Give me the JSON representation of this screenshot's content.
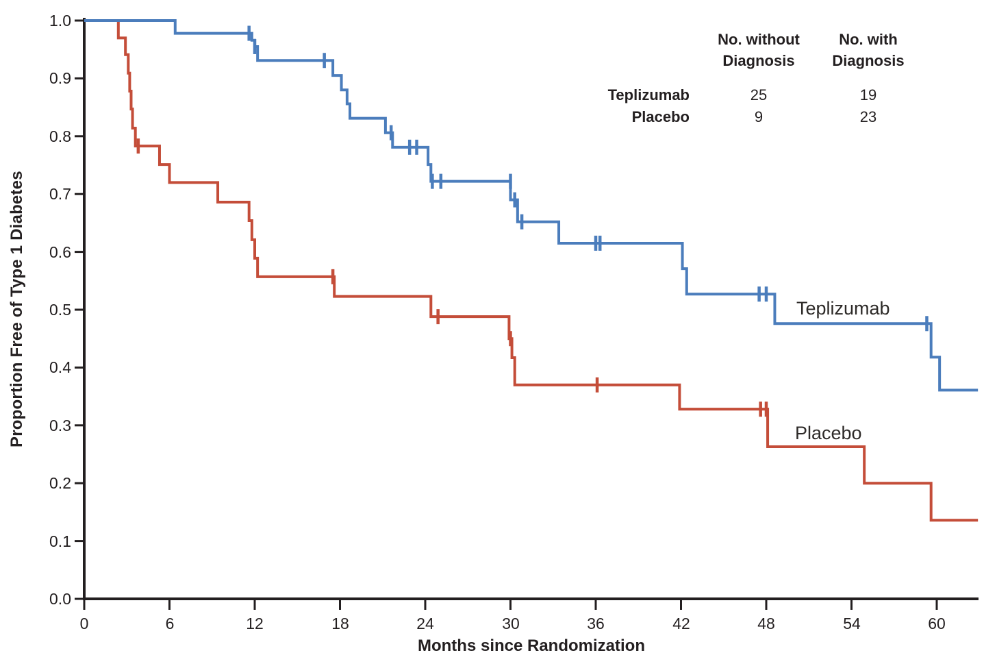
{
  "background_color": "#ffffff",
  "text_color": "#231f20",
  "axis_color": "#231f20",
  "chart_data": {
    "type": "line",
    "subtype": "kaplan-meier-step",
    "title": "",
    "xlabel": "Months since Randomization",
    "ylabel": "Proportion Free of Type 1 Diabetes",
    "xlim": [
      0,
      63
    ],
    "ylim": [
      0.0,
      1.0
    ],
    "xticks": [
      0,
      6,
      12,
      18,
      24,
      30,
      36,
      42,
      48,
      54,
      60
    ],
    "ytick_labels": [
      "0.0",
      "0.1",
      "0.2",
      "0.3",
      "0.4",
      "0.5",
      "0.6",
      "0.7",
      "0.8",
      "0.9",
      "1.0"
    ],
    "grid": false,
    "legend_position": "curve-labels-inline",
    "series": [
      {
        "name": "Placebo",
        "color": "#c44d39",
        "steps": [
          [
            0,
            1.0
          ],
          [
            2.4,
            0.97
          ],
          [
            2.9,
            0.941
          ],
          [
            3.1,
            0.909
          ],
          [
            3.2,
            0.878
          ],
          [
            3.3,
            0.847
          ],
          [
            3.4,
            0.814
          ],
          [
            3.6,
            0.783
          ],
          [
            5.3,
            0.751
          ],
          [
            6.0,
            0.72
          ],
          [
            9.4,
            0.686
          ],
          [
            11.6,
            0.654
          ],
          [
            11.8,
            0.621
          ],
          [
            12.0,
            0.589
          ],
          [
            12.2,
            0.557
          ],
          [
            17.6,
            0.523
          ],
          [
            24.4,
            0.488
          ],
          [
            29.9,
            0.45
          ],
          [
            30.1,
            0.417
          ],
          [
            30.3,
            0.37
          ],
          [
            41.9,
            0.328
          ],
          [
            48.1,
            0.263
          ],
          [
            54.9,
            0.2
          ],
          [
            59.6,
            0.136
          ]
        ],
        "end_x": 62.9,
        "censors": [
          [
            3.8,
            0.783
          ],
          [
            17.5,
            0.557
          ],
          [
            24.9,
            0.488
          ],
          [
            30.0,
            0.45
          ],
          [
            36.1,
            0.37
          ],
          [
            47.6,
            0.328
          ],
          [
            48.0,
            0.328
          ]
        ],
        "label": {
          "text": "Placebo",
          "x": 50.0,
          "y": 0.305
        }
      },
      {
        "name": "Teplizumab",
        "color": "#4b7dbc",
        "steps": [
          [
            0,
            1.0
          ],
          [
            6.4,
            0.978
          ],
          [
            11.8,
            0.966
          ],
          [
            12.0,
            0.955
          ],
          [
            12.2,
            0.931
          ],
          [
            17.5,
            0.905
          ],
          [
            18.1,
            0.88
          ],
          [
            18.5,
            0.856
          ],
          [
            18.7,
            0.831
          ],
          [
            21.2,
            0.806
          ],
          [
            21.7,
            0.781
          ],
          [
            24.2,
            0.751
          ],
          [
            24.4,
            0.722
          ],
          [
            30.0,
            0.69
          ],
          [
            30.5,
            0.652
          ],
          [
            33.4,
            0.615
          ],
          [
            42.1,
            0.571
          ],
          [
            42.4,
            0.527
          ],
          [
            48.6,
            0.476
          ],
          [
            59.6,
            0.418
          ],
          [
            60.2,
            0.361
          ]
        ],
        "end_x": 62.9,
        "censors": [
          [
            11.6,
            0.978
          ],
          [
            12.0,
            0.955
          ],
          [
            16.9,
            0.931
          ],
          [
            21.6,
            0.806
          ],
          [
            22.9,
            0.781
          ],
          [
            23.4,
            0.781
          ],
          [
            24.5,
            0.722
          ],
          [
            25.1,
            0.722
          ],
          [
            30.0,
            0.722
          ],
          [
            30.3,
            0.69
          ],
          [
            30.8,
            0.652
          ],
          [
            36.0,
            0.615
          ],
          [
            36.3,
            0.615
          ],
          [
            47.5,
            0.527
          ],
          [
            48.0,
            0.527
          ],
          [
            59.3,
            0.476
          ]
        ],
        "label": {
          "text": "Teplizumab",
          "x": 50.1,
          "y": 0.52
        }
      }
    ],
    "legend_table": {
      "col_headers": [
        "No. without Diagnosis",
        "No. with Diagnosis"
      ],
      "rows": [
        {
          "label": "Teplizumab",
          "no_without": "25",
          "no_with": "19"
        },
        {
          "label": "Placebo",
          "no_without": "9",
          "no_with": "23"
        }
      ]
    }
  }
}
